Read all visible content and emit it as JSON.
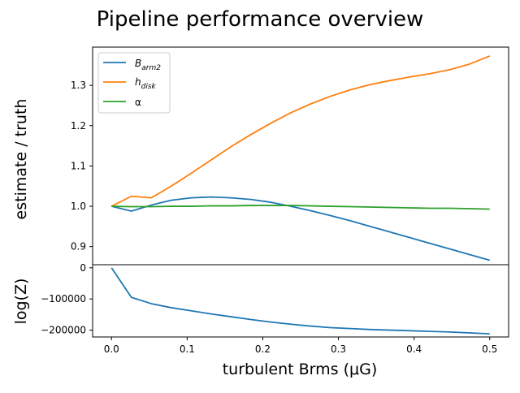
{
  "figure": {
    "title": "Pipeline performance overview"
  },
  "chart_data": [
    {
      "type": "line",
      "ylabel": "estimate / truth",
      "xlim": [
        -0.025,
        0.525
      ],
      "ylim": [
        0.855,
        1.395
      ],
      "yticks": [
        0.9,
        1.0,
        1.1,
        1.2,
        1.3
      ],
      "ytick_labels": [
        "0.9",
        "1.0",
        "1.1",
        "1.2",
        "1.3"
      ],
      "legend_location": "top-left",
      "x": [
        0.0,
        0.0263,
        0.0526,
        0.0789,
        0.1053,
        0.1316,
        0.1579,
        0.1842,
        0.2105,
        0.2368,
        0.2632,
        0.2895,
        0.3158,
        0.3421,
        0.3684,
        0.3947,
        0.4211,
        0.4474,
        0.4737,
        0.5
      ],
      "series": [
        {
          "name_main": "B",
          "name_sub": "arm2",
          "color": "#1f77b4",
          "values": [
            1.0,
            0.988,
            1.003,
            1.015,
            1.021,
            1.023,
            1.021,
            1.017,
            1.01,
            1.0,
            0.989,
            0.977,
            0.964,
            0.95,
            0.936,
            0.922,
            0.908,
            0.894,
            0.88,
            0.866
          ]
        },
        {
          "name_main": "h",
          "name_sub": "disk",
          "color": "#ff7f0e",
          "values": [
            1.0,
            1.025,
            1.021,
            1.05,
            1.082,
            1.115,
            1.148,
            1.178,
            1.206,
            1.232,
            1.254,
            1.273,
            1.289,
            1.302,
            1.312,
            1.321,
            1.329,
            1.339,
            1.353,
            1.373
          ]
        },
        {
          "name_main": "α",
          "name_sub": "",
          "color": "#2ca02c",
          "values": [
            1.0,
            0.999,
            0.999,
            1.0,
            1.0,
            1.001,
            1.001,
            1.002,
            1.002,
            1.002,
            1.001,
            1.0,
            0.999,
            0.998,
            0.997,
            0.996,
            0.995,
            0.995,
            0.994,
            0.993
          ]
        }
      ]
    },
    {
      "type": "line",
      "xlabel": "turbulent Brms (μG)",
      "ylabel": "log(Z)",
      "xlim": [
        -0.025,
        0.525
      ],
      "ylim": [
        -222000,
        10000
      ],
      "xticks": [
        0.0,
        0.1,
        0.2,
        0.3,
        0.4,
        0.5
      ],
      "xtick_labels": [
        "0.0",
        "0.1",
        "0.2",
        "0.3",
        "0.4",
        "0.5"
      ],
      "yticks": [
        0,
        -100000,
        -200000
      ],
      "ytick_labels": [
        "0",
        "−100000",
        "−200000"
      ],
      "x": [
        0.0,
        0.0263,
        0.0526,
        0.0789,
        0.1053,
        0.1316,
        0.1579,
        0.1842,
        0.2105,
        0.2368,
        0.2632,
        0.2895,
        0.3158,
        0.3421,
        0.3684,
        0.3947,
        0.4211,
        0.4474,
        0.4737,
        0.5
      ],
      "series": [
        {
          "name": "",
          "color": "#1f77b4",
          "values": [
            0,
            -95000,
            -115000,
            -128000,
            -138000,
            -148000,
            -157000,
            -166000,
            -174000,
            -181000,
            -187000,
            -192000,
            -195000,
            -198000,
            -200000,
            -202000,
            -204000,
            -206000,
            -209000,
            -212000
          ]
        }
      ]
    }
  ]
}
